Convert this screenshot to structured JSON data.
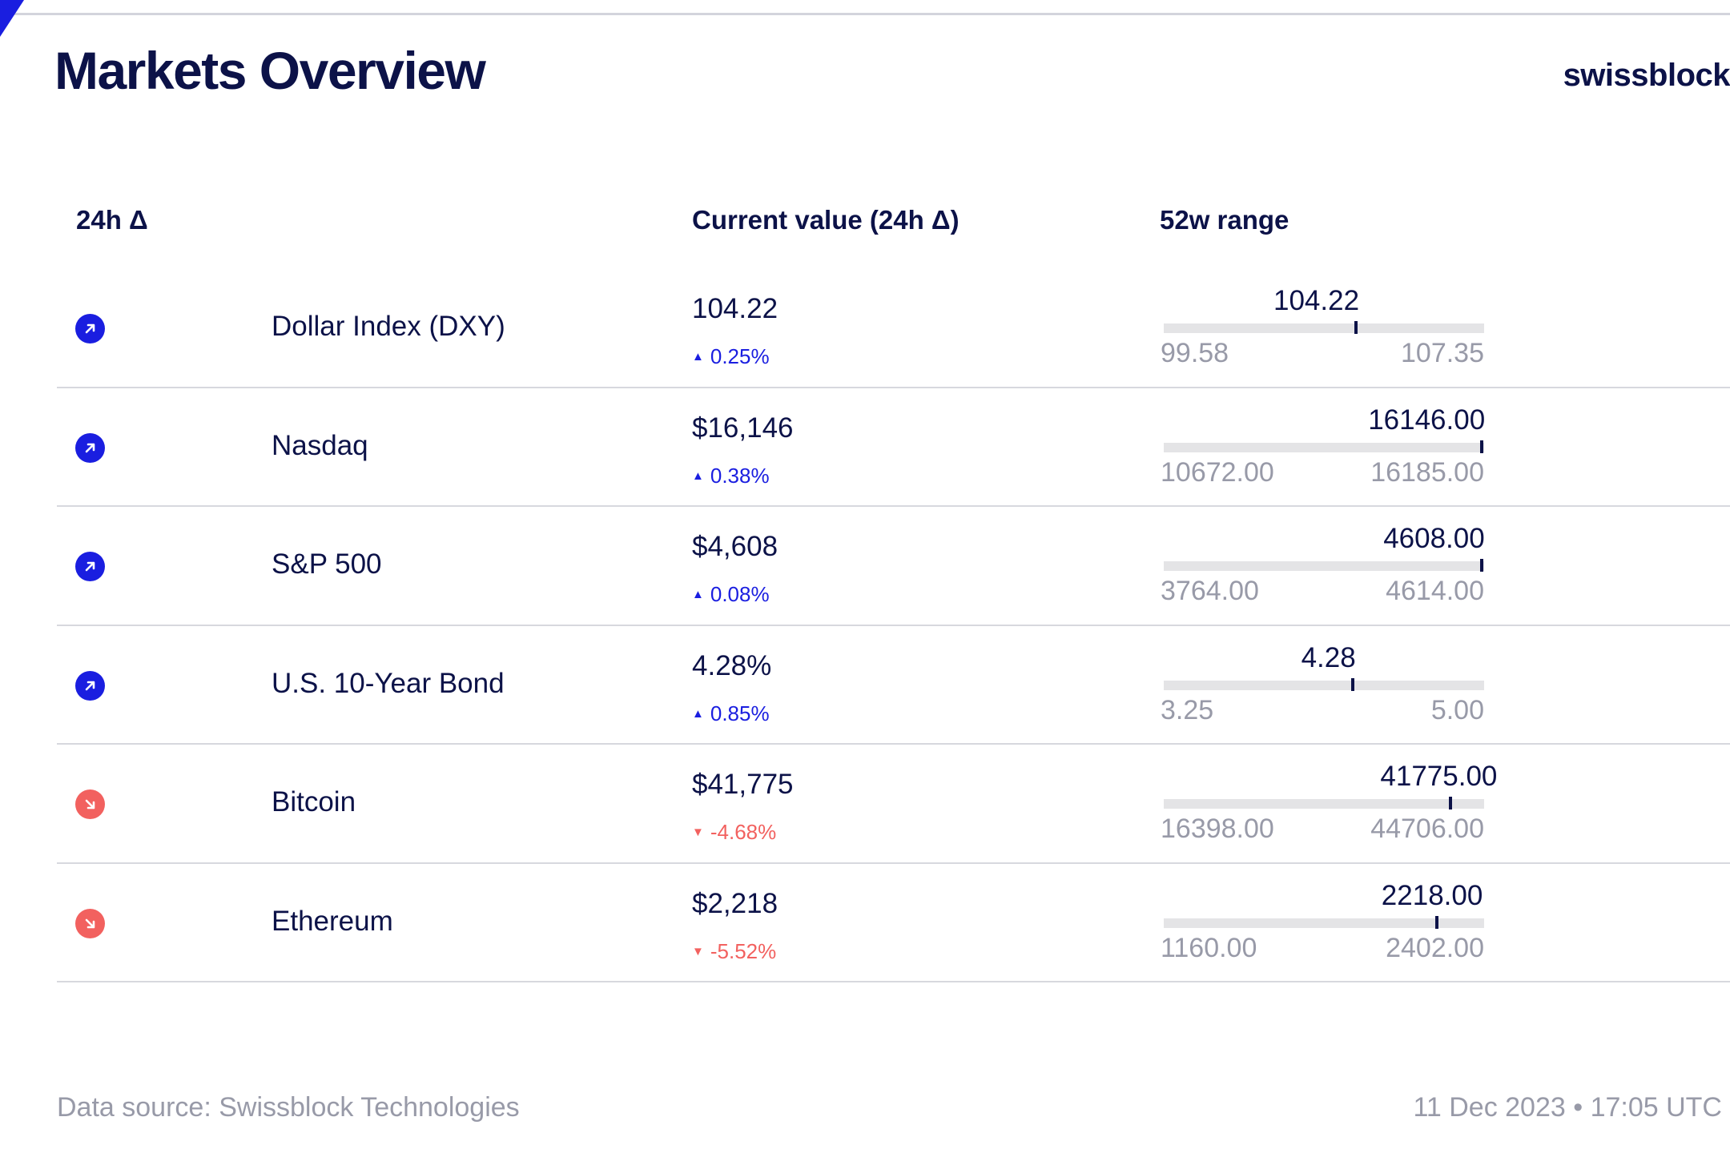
{
  "title": "Markets Overview",
  "brand": "swissblock",
  "colors": {
    "accent": "#1a1ee0",
    "navy": "#0c1248",
    "up": "#1a1ee0",
    "down": "#f2615f",
    "muted": "#989aa8",
    "track": "#e4e4e6"
  },
  "headers": {
    "delta": "24h Δ",
    "current": "Current value (24h Δ)",
    "range": "52w range"
  },
  "rows": [
    {
      "direction": "up",
      "icon": "arrow-up-right-icon",
      "name": "Dollar Index (DXY)",
      "value": "104.22",
      "change": "0.25%",
      "range_current": "104.22",
      "range_min": "99.58",
      "range_max": "107.35",
      "range_position": 0.6
    },
    {
      "direction": "up",
      "icon": "arrow-up-right-icon",
      "name": "Nasdaq",
      "value": "$16,146",
      "change": "0.38%",
      "range_current": "16146.00",
      "range_min": "10672.00",
      "range_max": "16185.00",
      "range_position": 0.993
    },
    {
      "direction": "up",
      "icon": "arrow-up-right-icon",
      "name": "S&P 500",
      "value": "$4,608",
      "change": "0.08%",
      "range_current": "4608.00",
      "range_min": "3764.00",
      "range_max": "4614.00",
      "range_position": 0.993
    },
    {
      "direction": "up",
      "icon": "arrow-up-right-icon",
      "name": "U.S. 10-Year Bond",
      "value": "4.28%",
      "change": "0.85%",
      "range_current": "4.28",
      "range_min": "3.25",
      "range_max": "5.00",
      "range_position": 0.589
    },
    {
      "direction": "down",
      "icon": "arrow-down-right-icon",
      "name": "Bitcoin",
      "value": "$41,775",
      "change": "-4.68%",
      "range_current": "41775.00",
      "range_min": "16398.00",
      "range_max": "44706.00",
      "range_position": 0.896
    },
    {
      "direction": "down",
      "icon": "arrow-down-right-icon",
      "name": "Ethereum",
      "value": "$2,218",
      "change": "-5.52%",
      "range_current": "2218.00",
      "range_min": "1160.00",
      "range_max": "2402.00",
      "range_position": 0.852
    }
  ],
  "footer": {
    "source": "Data source: Swissblock Technologies",
    "timestamp": "11 Dec 2023 • 17:05 UTC"
  }
}
